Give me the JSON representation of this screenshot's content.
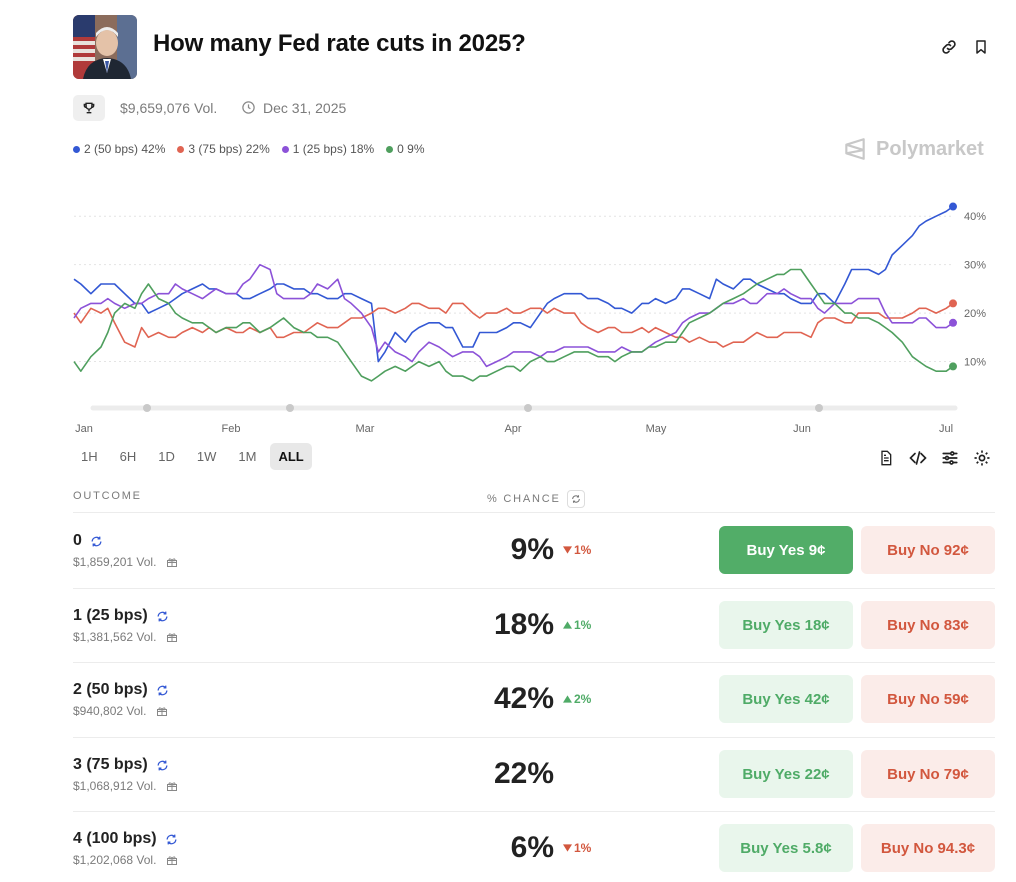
{
  "market": {
    "title": "How many Fed rate cuts in 2025?",
    "volume": "$9,659,076 Vol.",
    "end_date": "Dec 31, 2025"
  },
  "brand": "Polymarket",
  "icons": [
    "trophy-icon",
    "clock-icon",
    "link-icon",
    "bookmark-icon",
    "document-icon",
    "code-icon",
    "sliders-icon",
    "gear-icon",
    "sync-icon",
    "gift-icon"
  ],
  "colors": {
    "blue": "#3358d4",
    "red": "#e06452",
    "purple": "#8c52d8",
    "green": "#4f9f5e"
  },
  "legend": [
    {
      "label": "2 (50 bps) 42%",
      "color": "#3358d4"
    },
    {
      "label": "3 (75 bps) 22%",
      "color": "#e06452"
    },
    {
      "label": "1 (25 bps) 18%",
      "color": "#8c52d8"
    },
    {
      "label": "0 9%",
      "color": "#4f9f5e"
    }
  ],
  "chart_data": {
    "type": "line",
    "x_labels": [
      "Jan",
      "Feb",
      "Mar",
      "Apr",
      "May",
      "Jun",
      "Jul"
    ],
    "y_ticks": [
      "10%",
      "20%",
      "30%",
      "40%"
    ],
    "ylim": [
      0,
      45
    ],
    "series": [
      {
        "name": "2 (50 bps)",
        "color": "#3358d4",
        "x": [
          0,
          0.2,
          0.5,
          0.8,
          1,
          1.2,
          1.5,
          1.8,
          2,
          2.2,
          2.5,
          2.8,
          3,
          3.2,
          3.5,
          3.8,
          4,
          4.2,
          4.5,
          4.8,
          5,
          5.2,
          5.5,
          5.8,
          6,
          6.2,
          6.5,
          6.8,
          7,
          7.2,
          7.5,
          7.8,
          8,
          8.2,
          8.5,
          8.8,
          9,
          9.2,
          9.5,
          9.8,
          10,
          10.2,
          10.5,
          10.8,
          11,
          11.2,
          11.5,
          11.8,
          12,
          12.2,
          12.5,
          12.8,
          13,
          13.2,
          13.5,
          13.8,
          14,
          14.2,
          14.5,
          14.8,
          15,
          15.2,
          15.5,
          15.8,
          16,
          16.2,
          16.5,
          16.8,
          17,
          17.2,
          17.5,
          17.8,
          18,
          18.2,
          18.5,
          18.8,
          19,
          19.2,
          19.5,
          19.8,
          20,
          20.2,
          20.5,
          20.8,
          21,
          21.2,
          21.5,
          21.8,
          22,
          22.2,
          22.5,
          22.8,
          23,
          23.2,
          23.5,
          23.8,
          24,
          24.2,
          24.5,
          24.8,
          25,
          25.2,
          25.5,
          25.8,
          26
        ],
        "values": [
          27,
          26,
          24,
          26,
          26,
          26,
          24,
          22,
          22,
          20,
          21,
          22,
          23,
          24,
          25,
          26,
          25,
          25,
          24,
          24,
          23,
          23,
          24,
          25,
          26,
          26,
          25,
          25,
          24,
          24,
          23,
          23,
          24,
          24,
          23,
          22,
          10,
          12,
          16,
          14,
          16,
          17,
          18,
          18,
          17,
          17,
          13,
          13,
          16,
          16,
          16,
          17,
          18,
          18,
          17,
          20,
          22,
          23,
          24,
          24,
          24,
          23,
          23,
          22,
          21,
          21,
          20,
          22,
          22,
          23,
          22,
          23,
          25,
          25,
          24,
          23,
          27,
          26,
          25,
          27,
          27,
          26,
          25,
          24,
          24,
          23,
          22,
          22,
          24,
          24,
          22,
          26,
          29,
          29,
          29,
          28,
          29,
          32,
          34,
          36,
          38,
          39,
          40,
          41,
          42
        ]
      },
      {
        "name": "3 (75 bps)",
        "color": "#e06452",
        "x": [
          0,
          0.2,
          0.5,
          0.8,
          1,
          1.2,
          1.5,
          1.8,
          2,
          2.2,
          2.5,
          2.8,
          3,
          3.2,
          3.5,
          3.8,
          4,
          4.2,
          4.5,
          4.8,
          5,
          5.2,
          5.5,
          5.8,
          6,
          6.2,
          6.5,
          6.8,
          7,
          7.2,
          7.5,
          7.8,
          8,
          8.2,
          8.5,
          8.8,
          9,
          9.2,
          9.5,
          9.8,
          10,
          10.2,
          10.5,
          10.8,
          11,
          11.2,
          11.5,
          11.8,
          12,
          12.2,
          12.5,
          12.8,
          13,
          13.2,
          13.5,
          13.8,
          14,
          14.2,
          14.5,
          14.8,
          15,
          15.2,
          15.5,
          15.8,
          16,
          16.2,
          16.5,
          16.8,
          17,
          17.2,
          17.5,
          17.8,
          18,
          18.2,
          18.5,
          18.8,
          19,
          19.2,
          19.5,
          19.8,
          20,
          20.2,
          20.5,
          20.8,
          21,
          21.2,
          21.5,
          21.8,
          22,
          22.2,
          22.5,
          22.8,
          23,
          23.2,
          23.5,
          23.8,
          24,
          24.2,
          24.5,
          24.8,
          25,
          25.2,
          25.5,
          25.8,
          26
        ],
        "values": [
          20,
          18,
          21,
          20,
          21,
          18,
          14,
          13,
          17,
          15,
          16,
          15,
          15,
          16,
          17,
          16,
          17,
          16,
          17,
          16,
          16,
          17,
          16,
          17,
          15,
          15,
          16,
          16,
          17,
          18,
          17,
          17,
          18,
          19,
          19,
          20,
          21,
          21,
          20,
          21,
          22,
          22,
          21,
          21,
          20,
          22,
          22,
          20,
          19,
          20,
          20,
          21,
          20,
          20,
          21,
          21,
          20,
          21,
          20,
          20,
          18,
          17,
          16,
          17,
          17,
          16,
          16,
          17,
          16,
          17,
          16,
          15,
          15,
          14,
          15,
          14,
          14,
          13,
          14,
          14,
          15,
          16,
          15,
          15,
          16,
          16,
          16,
          15,
          18,
          19,
          19,
          18,
          18,
          20,
          20,
          20,
          19,
          19,
          19,
          20,
          21,
          21,
          20,
          21,
          22
        ]
      },
      {
        "name": "1 (25 bps)",
        "color": "#8c52d8",
        "x": [
          0,
          0.2,
          0.5,
          0.8,
          1,
          1.2,
          1.5,
          1.8,
          2,
          2.2,
          2.5,
          2.8,
          3,
          3.2,
          3.5,
          3.8,
          4,
          4.2,
          4.5,
          4.8,
          5,
          5.2,
          5.5,
          5.8,
          6,
          6.2,
          6.5,
          6.8,
          7,
          7.2,
          7.5,
          7.8,
          8,
          8.2,
          8.5,
          8.8,
          9,
          9.2,
          9.5,
          9.8,
          10,
          10.2,
          10.5,
          10.8,
          11,
          11.2,
          11.5,
          11.8,
          12,
          12.2,
          12.5,
          12.8,
          13,
          13.2,
          13.5,
          13.8,
          14,
          14.2,
          14.5,
          14.8,
          15,
          15.2,
          15.5,
          15.8,
          16,
          16.2,
          16.5,
          16.8,
          17,
          17.2,
          17.5,
          17.8,
          18,
          18.2,
          18.5,
          18.8,
          19,
          19.2,
          19.5,
          19.8,
          20,
          20.2,
          20.5,
          20.8,
          21,
          21.2,
          21.5,
          21.8,
          22,
          22.2,
          22.5,
          22.8,
          23,
          23.2,
          23.5,
          23.8,
          24,
          24.2,
          24.5,
          24.8,
          25,
          25.2,
          25.5,
          25.8,
          26
        ],
        "values": [
          19,
          21,
          22,
          22,
          23,
          22,
          21,
          22,
          22,
          23,
          24,
          24,
          26,
          25,
          24,
          23,
          24,
          25,
          24,
          24,
          26,
          27,
          30,
          29,
          24,
          23,
          23,
          23,
          24,
          26,
          25,
          27,
          23,
          22,
          20,
          17,
          12,
          14,
          12,
          11,
          10,
          12,
          14,
          13,
          12,
          11,
          12,
          12,
          11,
          9,
          10,
          11,
          12,
          12,
          12,
          11,
          12,
          12,
          13,
          13,
          13,
          13,
          12,
          12,
          12,
          13,
          12,
          12,
          13,
          14,
          15,
          16,
          18,
          19,
          20,
          20,
          21,
          22,
          22,
          23,
          22,
          22,
          24,
          24,
          25,
          24,
          23,
          23,
          21,
          20,
          22,
          22,
          22,
          23,
          23,
          23,
          20,
          18,
          18,
          18,
          19,
          19,
          17,
          17,
          18
        ]
      },
      {
        "name": "0",
        "color": "#4f9f5e",
        "x": [
          0,
          0.2,
          0.5,
          0.8,
          1,
          1.2,
          1.5,
          1.8,
          2,
          2.2,
          2.5,
          2.8,
          3,
          3.2,
          3.5,
          3.8,
          4,
          4.2,
          4.5,
          4.8,
          5,
          5.2,
          5.5,
          5.8,
          6,
          6.2,
          6.5,
          6.8,
          7,
          7.2,
          7.5,
          7.8,
          8,
          8.2,
          8.5,
          8.8,
          9,
          9.2,
          9.5,
          9.8,
          10,
          10.2,
          10.5,
          10.8,
          11,
          11.2,
          11.5,
          11.8,
          12,
          12.2,
          12.5,
          12.8,
          13,
          13.2,
          13.5,
          13.8,
          14,
          14.2,
          14.5,
          14.8,
          15,
          15.2,
          15.5,
          15.8,
          16,
          16.2,
          16.5,
          16.8,
          17,
          17.2,
          17.5,
          17.8,
          18,
          18.2,
          18.5,
          18.8,
          19,
          19.2,
          19.5,
          19.8,
          20,
          20.2,
          20.5,
          20.8,
          21,
          21.2,
          21.5,
          21.8,
          22,
          22.2,
          22.5,
          22.8,
          23,
          23.2,
          23.5,
          23.8,
          24,
          24.2,
          24.5,
          24.8,
          25,
          25.2,
          25.5,
          25.8,
          26
        ],
        "values": [
          10,
          8,
          11,
          13,
          16,
          20,
          22,
          21,
          24,
          26,
          23,
          22,
          20,
          19,
          18,
          18,
          17,
          16,
          17,
          17,
          18,
          18,
          16,
          17,
          18,
          19,
          17,
          16,
          16,
          15,
          15,
          14,
          12,
          10,
          7,
          6,
          7,
          8,
          9,
          8,
          9,
          10,
          9,
          10,
          8,
          7,
          7,
          6,
          7,
          7,
          8,
          9,
          9,
          8,
          10,
          11,
          10,
          10,
          11,
          12,
          12,
          12,
          11,
          11,
          10,
          11,
          12,
          12,
          13,
          13,
          14,
          14,
          16,
          18,
          19,
          20,
          21,
          22,
          23,
          24,
          25,
          26,
          27,
          28,
          28,
          29,
          29,
          26,
          24,
          22,
          22,
          20,
          20,
          19,
          19,
          18,
          17,
          16,
          14,
          11,
          10,
          9,
          8,
          8,
          9
        ]
      }
    ]
  },
  "timeframes": [
    "1H",
    "6H",
    "1D",
    "1W",
    "1M",
    "ALL"
  ],
  "active_timeframe": "ALL",
  "table": {
    "header_outcome": "OUTCOME",
    "header_chance": "% CHANCE",
    "rows": [
      {
        "name": "0",
        "volume": "$1,859,201 Vol.",
        "chance": "9%",
        "change": "1%",
        "change_dir": "down",
        "buy_yes": "Buy Yes 9¢",
        "buy_no": "Buy No 92¢"
      },
      {
        "name": "1 (25 bps)",
        "volume": "$1,381,562 Vol.",
        "chance": "18%",
        "change": "1%",
        "change_dir": "up",
        "buy_yes": "Buy Yes 18¢",
        "buy_no": "Buy No 83¢"
      },
      {
        "name": "2 (50 bps)",
        "volume": "$940,802 Vol.",
        "chance": "42%",
        "change": "2%",
        "change_dir": "up",
        "buy_yes": "Buy Yes 42¢",
        "buy_no": "Buy No 59¢"
      },
      {
        "name": "3 (75 bps)",
        "volume": "$1,068,912 Vol.",
        "chance": "22%",
        "change": "",
        "change_dir": "none",
        "buy_yes": "Buy Yes 22¢",
        "buy_no": "Buy No 79¢"
      },
      {
        "name": "4 (100 bps)",
        "volume": "$1,202,068 Vol.",
        "chance": "6%",
        "change": "1%",
        "change_dir": "down",
        "buy_yes": "Buy Yes 5.8¢",
        "buy_no": "Buy No 94.3¢"
      }
    ]
  }
}
